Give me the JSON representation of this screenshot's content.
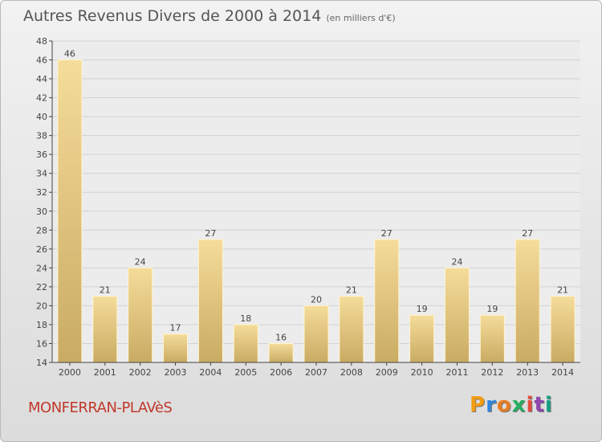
{
  "title": "Autres Revenus Divers de 2000 à 2014",
  "subtitle": "(en milliers d'€)",
  "place": "MONFERRAN-PLAVèS",
  "brand": "Proxiti",
  "colors": {
    "bar_top": "#f5dc9a",
    "bar_bottom": "#c9ab63",
    "grid": "#d2d2d2",
    "axis": "#444444",
    "place": "#c0392b",
    "brand_letters": [
      "#f39c12",
      "#2e86de",
      "#e67e22",
      "#27ae60",
      "#e74c3c",
      "#8e44ad",
      "#16a085"
    ]
  },
  "chart_data": {
    "type": "bar",
    "categories": [
      "2000",
      "2001",
      "2002",
      "2003",
      "2004",
      "2005",
      "2006",
      "2007",
      "2008",
      "2009",
      "2010",
      "2011",
      "2012",
      "2013",
      "2014"
    ],
    "values": [
      46,
      21,
      24,
      17,
      27,
      18,
      16,
      20,
      21,
      27,
      19,
      24,
      19,
      27,
      21
    ],
    "ylim": [
      14,
      48
    ],
    "yticks": [
      14,
      16,
      18,
      20,
      22,
      24,
      26,
      28,
      30,
      32,
      34,
      36,
      38,
      40,
      42,
      44,
      46,
      48
    ],
    "grid": true,
    "data_labels": true
  }
}
